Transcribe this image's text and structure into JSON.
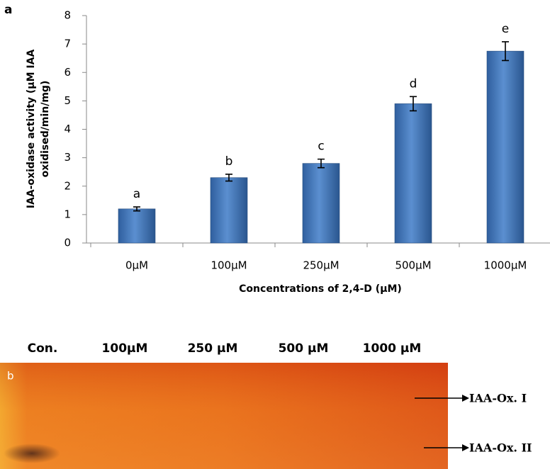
{
  "chart_data": {
    "type": "bar",
    "panel_label": "a",
    "categories": [
      "0µM",
      "100µM",
      "250µM",
      "500µM",
      "1000µM"
    ],
    "values": [
      1.2,
      2.3,
      2.8,
      4.9,
      6.75
    ],
    "errors": [
      0.07,
      0.12,
      0.15,
      0.25,
      0.33
    ],
    "annotations": [
      "a",
      "b",
      "c",
      "d",
      "e"
    ],
    "color": "#4a7cc0",
    "ylim": [
      0,
      8
    ],
    "yticks": [
      0,
      1,
      2,
      3,
      4,
      5,
      6,
      7,
      8
    ],
    "ylabel": [
      "IAA-oxidase activity (µM IAA",
      "oxidised/min/mg)"
    ],
    "xlabel": "Concentrations of 2,4-D  (µM)"
  },
  "gel": {
    "panel_label": "b",
    "lanes": [
      "Con.",
      "100µM",
      "250 µM",
      "500 µM",
      "1000 µM"
    ],
    "bands": [
      "IAA-Ox. I",
      "IAA-Ox. II"
    ]
  }
}
